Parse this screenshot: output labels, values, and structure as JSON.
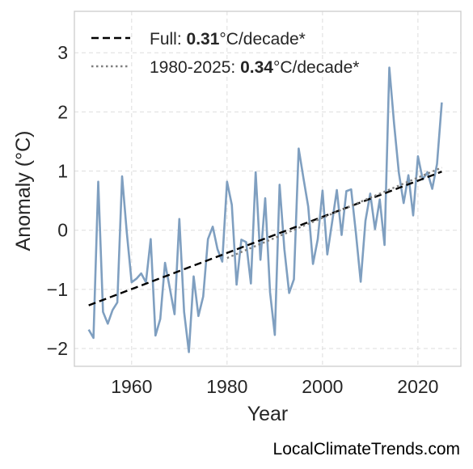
{
  "chart_data": {
    "type": "line",
    "title": "",
    "xlabel": "Year",
    "ylabel": "Anomaly (°C)",
    "xlim": [
      1948,
      2029
    ],
    "ylim": [
      -2.3,
      3.7
    ],
    "x_ticks": [
      1960,
      1980,
      2000,
      2020
    ],
    "x_tick_labels": [
      "1960",
      "1980",
      "2000",
      "2020"
    ],
    "y_ticks": [
      -2,
      -1,
      0,
      1,
      2,
      3
    ],
    "y_tick_labels": [
      "−2",
      "−1",
      "0",
      "1",
      "2",
      "3"
    ],
    "grid": true,
    "legend_position": "top-left",
    "series": [
      {
        "color": "#7f9fc0",
        "style": "solid",
        "x": [
          1951,
          1952,
          1953,
          1954,
          1955,
          1956,
          1957,
          1958,
          1959,
          1960,
          1961,
          1962,
          1963,
          1964,
          1965,
          1966,
          1967,
          1968,
          1969,
          1970,
          1971,
          1972,
          1973,
          1974,
          1975,
          1976,
          1977,
          1978,
          1979,
          1980,
          1981,
          1982,
          1983,
          1984,
          1985,
          1986,
          1987,
          1988,
          1989,
          1990,
          1991,
          1992,
          1993,
          1994,
          1995,
          1996,
          1997,
          1998,
          1999,
          2000,
          2001,
          2002,
          2003,
          2004,
          2005,
          2006,
          2007,
          2008,
          2009,
          2010,
          2011,
          2012,
          2013,
          2014,
          2015,
          2016,
          2017,
          2018,
          2019,
          2020,
          2021,
          2022,
          2023,
          2024,
          2025
        ],
        "values": [
          -1.68,
          -1.82,
          0.82,
          -1.38,
          -1.58,
          -1.35,
          -1.22,
          0.91,
          -0.05,
          -0.88,
          -0.82,
          -0.73,
          -0.88,
          -0.15,
          -1.78,
          -1.5,
          -0.55,
          -0.98,
          -1.42,
          0.19,
          -1.38,
          -2.06,
          -0.78,
          -1.45,
          -1.12,
          -0.15,
          0.06,
          -0.32,
          -0.53,
          0.82,
          0.43,
          -0.92,
          -0.16,
          -0.2,
          -0.9,
          0.98,
          -0.5,
          0.54,
          -1.05,
          -1.77,
          0.77,
          -0.32,
          -1.06,
          -0.83,
          1.38,
          0.88,
          0.4,
          -0.57,
          -0.15,
          0.67,
          -0.41,
          0.13,
          0.68,
          -0.08,
          0.66,
          0.69,
          -0.05,
          -0.87,
          0.16,
          0.62,
          0.02,
          0.52,
          -0.25,
          2.75,
          1.8,
          0.97,
          0.46,
          0.93,
          0.25,
          1.25,
          0.86,
          0.98,
          0.7,
          1.12,
          2.16
        ]
      },
      {
        "name": "Full: 0.31°C/decade*",
        "color": "#000000",
        "style": "dashed",
        "x": [
          1951,
          2025
        ],
        "values": [
          -1.27,
          0.99
        ]
      },
      {
        "name": "1980-2025: 0.34°C/decade*",
        "color": "#7f7f7f",
        "style": "dotted",
        "x": [
          1980,
          2025
        ],
        "values": [
          -0.47,
          1.06
        ]
      }
    ],
    "legend": [
      {
        "prefix": "Full: ",
        "bold": "0.31",
        "suffix": "°C/decade*"
      },
      {
        "prefix": "1980-2025: ",
        "bold": "0.34",
        "suffix": "°C/decade*"
      }
    ]
  },
  "watermark": "LocalClimateTrends.com"
}
